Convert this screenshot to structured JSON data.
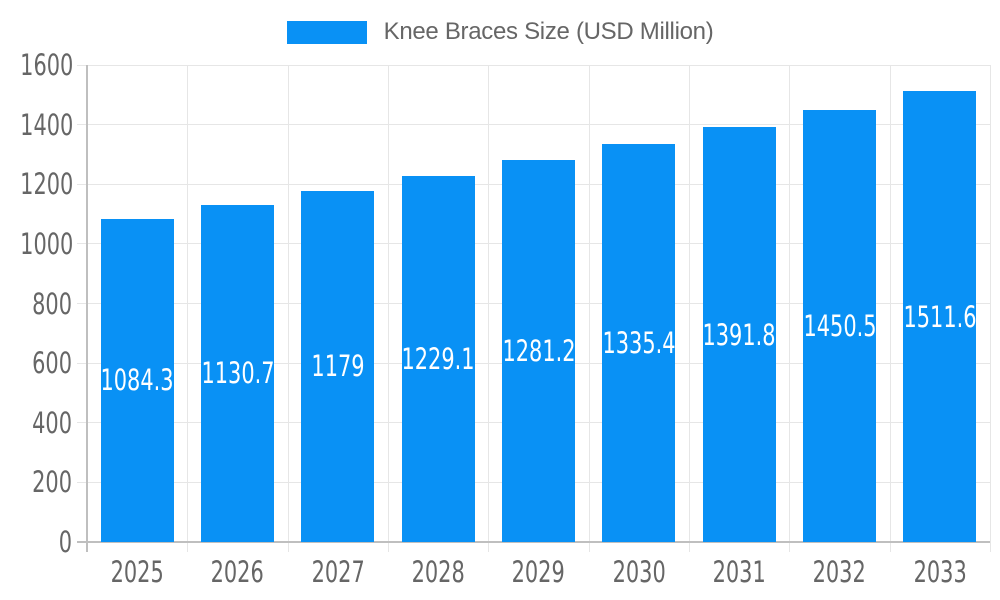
{
  "legend": {
    "label": "Knee Braces Size (USD Million)"
  },
  "chart_data": {
    "type": "bar",
    "title": "Knee Braces Size (USD Million)",
    "series_name": "Knee Braces Size (USD Million)",
    "categories": [
      "2025",
      "2026",
      "2027",
      "2028",
      "2029",
      "2030",
      "2031",
      "2032",
      "2033"
    ],
    "values": [
      1084.3,
      1130.7,
      1179,
      1229.1,
      1281.2,
      1335.4,
      1391.8,
      1450.5,
      1511.6
    ],
    "xlabel": "",
    "ylabel": "",
    "ylim": [
      0,
      1600
    ],
    "ytick_step": 200,
    "ytick_labels": [
      "0",
      "200",
      "400",
      "600",
      "800",
      "1000",
      "1200",
      "1400",
      "1600"
    ],
    "grid": true,
    "legend_position": "top",
    "value_labels_position": "center-inside",
    "colors": {
      "bar": "#0991f5",
      "bar_value_label": "#ffffff",
      "grid_line": "#e6e6e6",
      "axis_line": "#bfbfbf",
      "tick_text": "#666666",
      "legend_text": "#666666",
      "background": "#ffffff"
    }
  }
}
